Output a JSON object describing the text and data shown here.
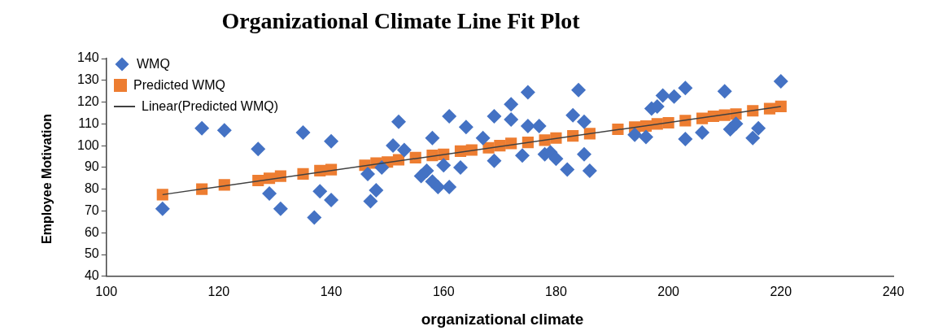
{
  "chart_data": {
    "type": "scatter",
    "title": "Organizational Climate Line Fit  Plot",
    "xlabel": "organizational climate",
    "ylabel": "Employee Motivation",
    "xlim": [
      100,
      240
    ],
    "xticks": [
      100,
      120,
      140,
      160,
      180,
      200,
      220,
      240
    ],
    "ylim": [
      40,
      140
    ],
    "yticks": [
      40,
      50,
      60,
      70,
      80,
      90,
      100,
      110,
      120,
      130,
      140
    ],
    "grid": false,
    "legend": "top left",
    "series": [
      {
        "name": "WMQ",
        "type": "scatter",
        "marker": "diamond",
        "color": "#4472c4",
        "x": [
          110,
          117,
          121,
          127,
          129,
          131,
          135,
          137,
          138,
          140,
          140,
          146.5,
          147,
          148,
          149,
          151,
          152,
          153,
          156,
          157,
          158,
          158,
          159,
          160,
          161,
          161,
          163,
          164,
          167,
          169,
          169,
          172,
          172,
          174,
          175,
          175,
          177,
          178,
          179,
          180,
          182,
          183,
          184,
          185,
          185,
          186,
          194,
          196,
          197,
          198,
          199,
          201,
          203,
          203,
          206,
          210,
          211,
          212,
          215,
          216,
          220
        ],
        "values": [
          71,
          108,
          107,
          98.5,
          78,
          71,
          106,
          67,
          79,
          102,
          75,
          87,
          74.5,
          79.5,
          90,
          100,
          111,
          98,
          86,
          88.5,
          103.5,
          83.5,
          81,
          91,
          81,
          113.5,
          90,
          108.5,
          103.5,
          113.5,
          93,
          119,
          112,
          95.5,
          124.5,
          109,
          109,
          96,
          97,
          94,
          89,
          114,
          125.5,
          111,
          96,
          88.5,
          105,
          104,
          117,
          118,
          123,
          122.5,
          126.5,
          103,
          106,
          125,
          107.5,
          110,
          103.5,
          108,
          129.5
        ]
      },
      {
        "name": "Predicted WMQ",
        "type": "scatter",
        "marker": "square",
        "color": "#ed7d31",
        "x": [
          110,
          117,
          121,
          127,
          129,
          131,
          135,
          138,
          140,
          146,
          148,
          150,
          152,
          155,
          158,
          160,
          163,
          165,
          168,
          170,
          172,
          175,
          178,
          180,
          183,
          186,
          191,
          194,
          196,
          198,
          200,
          203,
          206,
          208,
          210,
          212,
          215,
          218,
          220
        ],
        "values": [
          77.5,
          80,
          82,
          84,
          85,
          86,
          87,
          88.5,
          89,
          91,
          92,
          92.5,
          93.5,
          94.5,
          95.5,
          96,
          97.5,
          98,
          99,
          100,
          101,
          101.5,
          102.5,
          103.5,
          104.5,
          105.5,
          107.5,
          108.5,
          109,
          110,
          110.5,
          111.5,
          112.5,
          113.5,
          114,
          114.5,
          116,
          117,
          118
        ]
      },
      {
        "name": "Linear(Predicted WMQ)",
        "type": "line",
        "marker": "none",
        "line_style": "solid",
        "color": "#404040",
        "x": [
          110,
          220
        ],
        "values": [
          77.5,
          118
        ]
      }
    ]
  }
}
